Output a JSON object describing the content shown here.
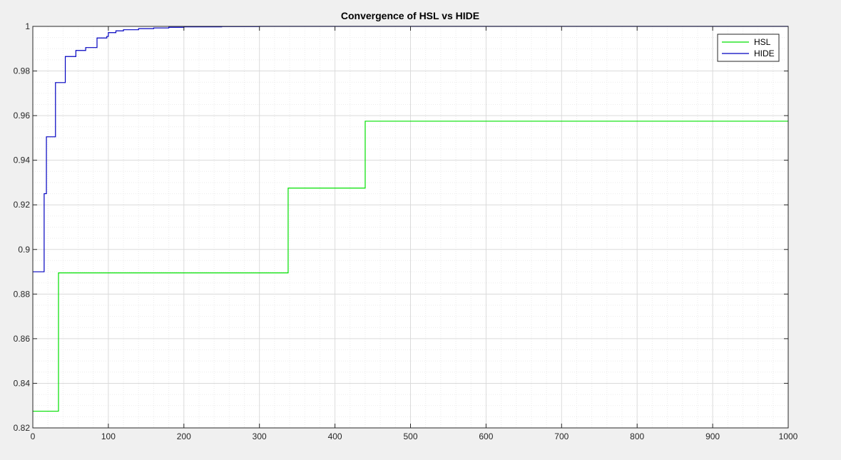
{
  "chart_data": {
    "type": "line",
    "title": "Convergence of HSL vs HIDE",
    "xlabel": "",
    "ylabel": "",
    "xlim": [
      0,
      1000
    ],
    "ylim": [
      0.82,
      1
    ],
    "xticks": [
      0,
      100,
      200,
      300,
      400,
      500,
      600,
      700,
      800,
      900,
      1000
    ],
    "yticks": [
      0.82,
      0.84,
      0.86,
      0.88,
      0.9,
      0.92,
      0.94,
      0.96,
      0.98,
      1
    ],
    "ytick_labels": [
      "0.82",
      "0.84",
      "0.86",
      "0.88",
      "0.9",
      "0.92",
      "0.94",
      "0.96",
      "0.98",
      "1"
    ],
    "grid": true,
    "minor_grid": true,
    "legend_position": "top-right",
    "series": [
      {
        "name": "HSL",
        "color": "#00e000",
        "step": true,
        "x": [
          0,
          34,
          34,
          338,
          338,
          440,
          440,
          1000
        ],
        "y": [
          0.8275,
          0.8275,
          0.8895,
          0.8895,
          0.9275,
          0.9275,
          0.9575,
          0.9575
        ]
      },
      {
        "name": "HIDE",
        "color": "#0000c0",
        "step": true,
        "x": [
          0,
          15,
          15,
          18,
          18,
          22,
          22,
          30,
          30,
          43,
          43,
          57,
          57,
          70,
          70,
          85,
          85,
          98,
          98,
          100,
          100,
          110,
          110,
          120,
          120,
          140,
          140,
          160,
          160,
          180,
          180,
          200,
          200,
          250,
          250,
          300,
          300,
          1000
        ],
        "y": [
          0.89,
          0.89,
          0.925,
          0.925,
          0.9505,
          0.9505,
          0.9505,
          0.9505,
          0.9748,
          0.9748,
          0.9865,
          0.9865,
          0.9892,
          0.9892,
          0.9905,
          0.9905,
          0.9948,
          0.9948,
          0.9955,
          0.9955,
          0.9972,
          0.9972,
          0.998,
          0.998,
          0.9985,
          0.9985,
          0.999,
          0.999,
          0.9993,
          0.9993,
          0.9996,
          0.9996,
          0.9998,
          0.9998,
          0.9999,
          0.9999,
          1.0,
          1.0
        ]
      }
    ]
  }
}
